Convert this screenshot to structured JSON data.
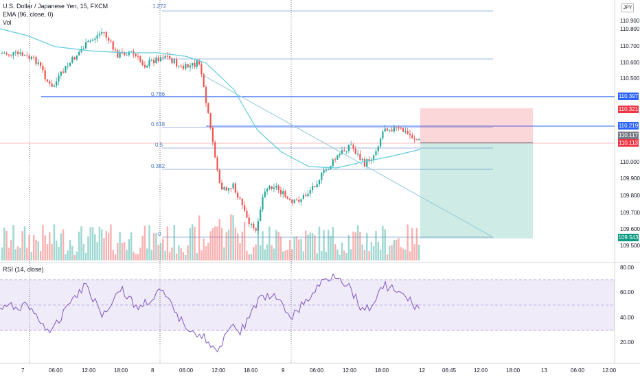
{
  "legend": {
    "symbol": "U.S. Dollar / Japanese Yen, 15, FXCM",
    "ema": "EMA (96, close, 0)",
    "vol": "Vol",
    "rsi": "RSI (14, close)"
  },
  "currency": "JPY",
  "price_axis": [
    "110.900",
    "110.800",
    "110.700",
    "110.600",
    "110.500",
    "110.000",
    "109.900",
    "109.800",
    "109.700",
    "109.600",
    "109.500"
  ],
  "rsi_axis": [
    "80.00",
    "60.00",
    "40.00",
    "20.00"
  ],
  "time_axis": [
    "7",
    "06:00",
    "12:00",
    "18:00",
    "8",
    "06:00",
    "12:00",
    "18:00",
    "9",
    "06:00",
    "12:00",
    "18:00",
    "12",
    "06:45",
    "12:00",
    "18:00",
    "13",
    "06:00",
    "12:00"
  ],
  "fib_levels": [
    "1.272",
    "0.786",
    "0.618",
    "0.5",
    "0.382",
    "0"
  ],
  "price_tags": [
    {
      "text": "110.397",
      "color": "#2962ff"
    },
    {
      "text": "110.321",
      "color": "#f23645"
    },
    {
      "text": "110.219",
      "color": "#2962ff"
    },
    {
      "text": "110.117",
      "color": "#787b86"
    },
    {
      "text": "110.113",
      "color": "#f23645"
    },
    {
      "text": "109.543",
      "color": "#089981"
    }
  ],
  "colors": {
    "up": "#26a69a",
    "down": "#ef5350",
    "ema": "#5fcbdc",
    "rsi": "#7e57c2"
  }
}
